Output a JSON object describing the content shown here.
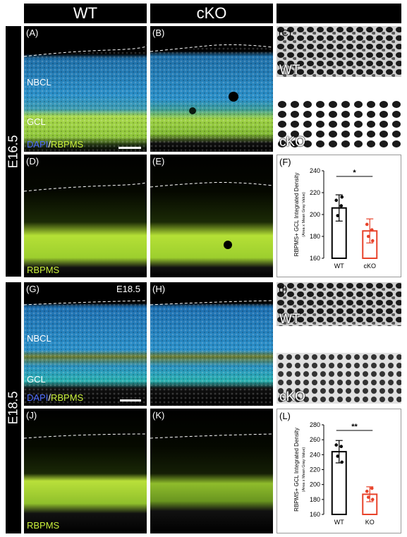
{
  "headers": {
    "wt": "WT",
    "cko": "cKO"
  },
  "row_tabs": {
    "e165": "E16.5",
    "e185": "E18.5"
  },
  "panels": {
    "A": {
      "label": "(A)",
      "nbcl": "NBCL",
      "gcl": "GCL",
      "stain_dapi": "DAPI",
      "stain_sep": "/",
      "stain_rbpms": "RBPMS"
    },
    "B": {
      "label": "(B)"
    },
    "C": {
      "label": "(C)",
      "wt": "WT",
      "cko": "cKO"
    },
    "D": {
      "label": "(D)",
      "stain": "RBPMS"
    },
    "E": {
      "label": "(E)"
    },
    "F": {
      "label": "(F)"
    },
    "G": {
      "label": "(G)",
      "age": "E18.5",
      "nbcl": "NBCL",
      "gcl": "GCL",
      "stain_dapi": "DAPI",
      "stain_sep": "/",
      "stain_rbpms": "RBPMS"
    },
    "H": {
      "label": "(H)"
    },
    "I": {
      "label": "(I)",
      "wt": "WT",
      "cko": "cKO"
    },
    "J": {
      "label": "(J)",
      "stain": "RBPMS"
    },
    "K": {
      "label": "(K)"
    },
    "L": {
      "label": "(L)"
    }
  },
  "colors": {
    "dapi": "#2a8fc8",
    "rbpms": "#c9f03a",
    "wt_bar": "#000000",
    "ko_bar": "#e8432a"
  },
  "chart_data": [
    {
      "type": "bar",
      "panel": "F",
      "categories": [
        "WT",
        "cKO"
      ],
      "values": [
        206,
        185
      ],
      "errors": [
        12,
        11
      ],
      "points": [
        [
          213,
          208,
          199,
          216
        ],
        [
          191,
          186,
          180,
          176
        ]
      ],
      "ylabel": "RBPMS+ GCL Integrated Density",
      "ylabel_sub": "(Area x Mean Gray Value)",
      "ylim": [
        160,
        240
      ],
      "yticks": [
        160,
        180,
        200,
        220,
        240
      ],
      "significance": "*"
    },
    {
      "type": "bar",
      "panel": "L",
      "categories": [
        "WT",
        "KO"
      ],
      "values": [
        244,
        187
      ],
      "errors": [
        15,
        10
      ],
      "points": [
        [
          253,
          251,
          238,
          230
        ],
        [
          191,
          195,
          183,
          180
        ]
      ],
      "ylabel": "RBPMS+ GCL Integrated Density",
      "ylabel_sub": "(Area x Mean Gray Value)",
      "ylim": [
        160,
        280
      ],
      "yticks": [
        160,
        180,
        200,
        220,
        240,
        260,
        280
      ],
      "significance": "**"
    }
  ]
}
